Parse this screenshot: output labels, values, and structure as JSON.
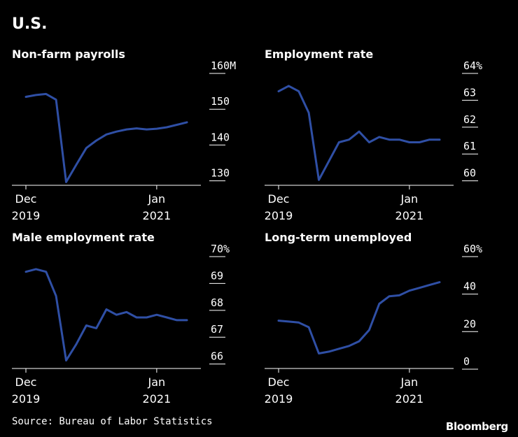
{
  "title": "U.S.",
  "source": "Source: Bureau of Labor Statistics",
  "brand": "Bloomberg",
  "line_color": "#2f4fa5",
  "chart_data": [
    {
      "type": "line",
      "title": "Non-farm payrolls",
      "yticks": [
        "160M",
        "150",
        "140",
        "130"
      ],
      "ytick_values": [
        160,
        150,
        140,
        130
      ],
      "ylim": [
        127,
        160
      ],
      "x_label_top": [
        "Dec",
        "Jan"
      ],
      "x_label_bottom": [
        "2019",
        "2021"
      ],
      "x": [
        "2019-12",
        "2020-01",
        "2020-02",
        "2020-03",
        "2020-04",
        "2020-05",
        "2020-06",
        "2020-07",
        "2020-08",
        "2020-09",
        "2020-10",
        "2020-11",
        "2020-12",
        "2021-01",
        "2021-02",
        "2021-03",
        "2021-04"
      ],
      "values": [
        151.7,
        152.2,
        152.5,
        150.9,
        127.9,
        132.7,
        137.4,
        139.5,
        141.2,
        142.0,
        142.6,
        142.9,
        142.6,
        142.8,
        143.2,
        143.9,
        144.6
      ]
    },
    {
      "type": "line",
      "title": "Employment rate",
      "yticks": [
        "64%",
        "63",
        "62",
        "61",
        "60"
      ],
      "ytick_values": [
        64,
        63,
        62,
        61,
        60
      ],
      "ylim": [
        59.6,
        64
      ],
      "x_label_top": [
        "Dec",
        "Jan"
      ],
      "x_label_bottom": [
        "2019",
        "2021"
      ],
      "x": [
        "2019-12",
        "2020-01",
        "2020-02",
        "2020-03",
        "2020-04",
        "2020-05",
        "2020-06",
        "2020-07",
        "2020-08",
        "2020-09",
        "2020-10",
        "2020-11",
        "2020-12",
        "2021-01",
        "2021-02",
        "2021-03",
        "2021-04"
      ],
      "values": [
        63.1,
        63.3,
        63.1,
        62.3,
        59.8,
        60.5,
        61.2,
        61.3,
        61.6,
        61.2,
        61.4,
        61.3,
        61.3,
        61.2,
        61.2,
        61.3,
        61.3
      ]
    },
    {
      "type": "line",
      "title": "Male employment rate",
      "yticks": [
        "70%",
        "69",
        "68",
        "67",
        "66"
      ],
      "ytick_values": [
        70,
        69,
        68,
        67,
        66
      ],
      "ylim": [
        65.6,
        70
      ],
      "x_label_top": [
        "Dec",
        "Jan"
      ],
      "x_label_bottom": [
        "2019",
        "2021"
      ],
      "x": [
        "2019-12",
        "2020-01",
        "2020-02",
        "2020-03",
        "2020-04",
        "2020-05",
        "2020-06",
        "2020-07",
        "2020-08",
        "2020-09",
        "2020-10",
        "2020-11",
        "2020-12",
        "2021-01",
        "2021-02",
        "2021-03",
        "2021-04"
      ],
      "values": [
        69.2,
        69.3,
        69.2,
        68.3,
        65.9,
        66.5,
        67.2,
        67.1,
        67.8,
        67.6,
        67.7,
        67.5,
        67.5,
        67.6,
        67.5,
        67.4,
        67.4
      ]
    },
    {
      "type": "line",
      "title": "Long-term unemployed",
      "yticks": [
        "60%",
        "40",
        "20",
        "0"
      ],
      "ytick_values": [
        60,
        40,
        20,
        0
      ],
      "ylim": [
        -3,
        60
      ],
      "x_label_top": [
        "Dec",
        "Jan"
      ],
      "x_label_bottom": [
        "2019",
        "2021"
      ],
      "x": [
        "2019-12",
        "2020-01",
        "2020-02",
        "2020-03",
        "2020-04",
        "2020-05",
        "2020-06",
        "2020-07",
        "2020-08",
        "2020-09",
        "2020-10",
        "2020-11",
        "2020-12",
        "2021-01",
        "2021-02",
        "2021-03",
        "2021-04"
      ],
      "values": [
        22.5,
        22.0,
        21.5,
        19.0,
        5.0,
        6.0,
        7.5,
        9.0,
        11.5,
        17.5,
        31.5,
        35.5,
        36.0,
        38.5,
        40.0,
        41.5,
        43.0
      ]
    }
  ]
}
